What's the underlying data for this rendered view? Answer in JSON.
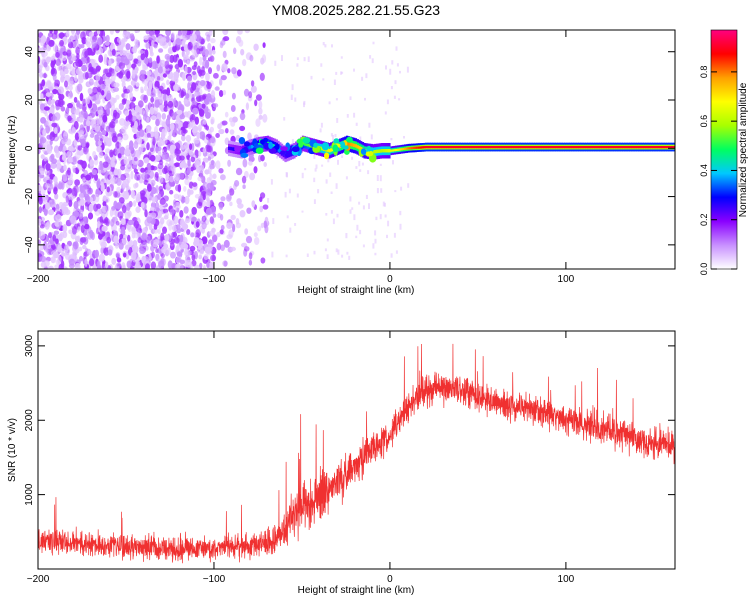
{
  "chart_data": {
    "title": "YM08.2025.282.21.55.G23",
    "type": "figure",
    "panels": [
      {
        "type": "heatmap",
        "xlabel": "Height of straight line (km)",
        "ylabel": "Frequency (Hz)",
        "xlim": [
          -200,
          162
        ],
        "ylim": [
          -50,
          49
        ],
        "xticks": [
          -200,
          -100,
          0,
          100
        ],
        "yticks": [
          -40,
          -20,
          0,
          20,
          40
        ],
        "colorbar": {
          "label": "Normalized spectral amplitude",
          "range": [
            0,
            0.97
          ],
          "ticks": [
            0,
            0.2,
            0.4,
            0.6,
            0.8
          ],
          "tick_labels": [
            "0.0",
            "0.2",
            "0.4",
            "0.6",
            "0.8"
          ],
          "stops": [
            "#ffffff",
            "#c890ff",
            "#8a00ff",
            "#0000ff",
            "#00c8ff",
            "#00ff60",
            "#a8ff00",
            "#ffff00",
            "#ffa000",
            "#ff0000",
            "#ff0080"
          ]
        },
        "noise_region": {
          "x_range": [
            -200,
            -70
          ],
          "freq_range": [
            -50,
            49
          ],
          "typical_amplitude": 0.12
        },
        "trace": {
          "x": [
            -92,
            -85,
            -80,
            -75,
            -70,
            -65,
            -60,
            -55,
            -50,
            -45,
            -40,
            -35,
            -30,
            -25,
            -20,
            -15,
            -10,
            -5,
            0,
            5,
            10,
            20,
            40,
            60,
            80,
            100,
            120,
            140,
            162
          ],
          "freq": [
            0,
            -1,
            0.5,
            1.5,
            2,
            0.5,
            -2.5,
            -1,
            2,
            1,
            0,
            -1,
            0.5,
            2,
            1,
            -1,
            -1.5,
            -1,
            -1,
            -0.5,
            0,
            0.5,
            0.5,
            0.5,
            0.5,
            0.5,
            0.5,
            0.5,
            0.5
          ],
          "amplitude": [
            0.25,
            0.3,
            0.35,
            0.45,
            0.5,
            0.4,
            0.35,
            0.4,
            0.5,
            0.55,
            0.6,
            0.65,
            0.7,
            0.8,
            0.75,
            0.7,
            0.6,
            0.6,
            0.65,
            0.7,
            0.8,
            0.9,
            0.9,
            0.9,
            0.9,
            0.9,
            0.9,
            0.9,
            0.9
          ]
        }
      },
      {
        "type": "line",
        "xlabel": "Height of straight line (km)",
        "ylabel": "SNR (10 * v/v)",
        "xlim": [
          -200,
          162
        ],
        "ylim": [
          0,
          3200
        ],
        "xticks": [
          -200,
          -100,
          0,
          100
        ],
        "yticks": [
          1000,
          2000,
          3000
        ],
        "color": "#f03030",
        "envelope": {
          "x": [
            -200,
            -150,
            -100,
            -75,
            -70,
            -62,
            -55,
            -50,
            -40,
            -30,
            -20,
            -10,
            0,
            10,
            20,
            30,
            40,
            50,
            60,
            80,
            100,
            120,
            140,
            162
          ],
          "mean": [
            380,
            300,
            280,
            330,
            360,
            450,
            750,
            800,
            950,
            1150,
            1400,
            1650,
            1800,
            2150,
            2400,
            2450,
            2420,
            2300,
            2250,
            2150,
            2000,
            1900,
            1750,
            1650
          ],
          "spread": [
            280,
            260,
            250,
            260,
            280,
            320,
            500,
            550,
            500,
            450,
            400,
            350,
            350,
            320,
            320,
            320,
            320,
            320,
            300,
            300,
            320,
            320,
            330,
            340
          ]
        }
      }
    ]
  }
}
